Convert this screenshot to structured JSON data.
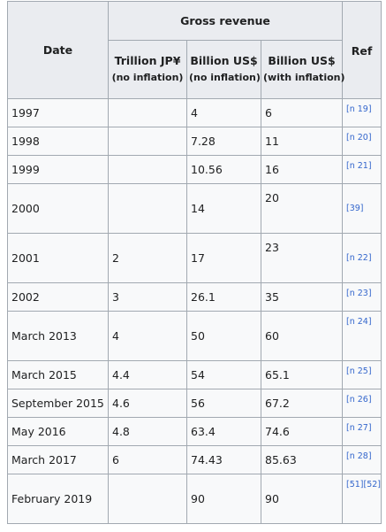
{
  "table": {
    "header": {
      "date": "Date",
      "gross_revenue": "Gross revenue",
      "ref": "Ref",
      "columns": [
        {
          "line1": "Trillion JP¥",
          "line2": "(no inflation)"
        },
        {
          "line1": "Billion US$",
          "line2": "(no inflation)"
        },
        {
          "line1": "Billion US$",
          "line2": "(with inflation)"
        }
      ]
    },
    "rows": [
      {
        "date": "1997",
        "jpy": "",
        "usd": "4",
        "usd_infl": "6",
        "ref": "[n 19]"
      },
      {
        "date": "1998",
        "jpy": "",
        "usd": "7.28",
        "usd_infl": "11",
        "ref": "[n 20]"
      },
      {
        "date": "1999",
        "jpy": "",
        "usd": "10.56",
        "usd_infl": "16",
        "ref": "[n 21]"
      },
      {
        "date": "2000",
        "jpy": "",
        "usd": "14",
        "usd_infl": "20",
        "ref": "[39]"
      },
      {
        "date": "2001",
        "jpy": "2",
        "usd": "17",
        "usd_infl": "23",
        "ref": "[n 22]"
      },
      {
        "date": "2002",
        "jpy": "3",
        "usd": "26.1",
        "usd_infl": "35",
        "ref": "[n 23]"
      },
      {
        "date": "March 2013",
        "jpy": "4",
        "usd": "50",
        "usd_infl": "60",
        "ref": "[n 24]"
      },
      {
        "date": "March 2015",
        "jpy": "4.4",
        "usd": "54",
        "usd_infl": "65.1",
        "ref": "[n 25]"
      },
      {
        "date": "September 2015",
        "jpy": "4.6",
        "usd": "56",
        "usd_infl": "67.2",
        "ref": "[n 26]"
      },
      {
        "date": "May 2016",
        "jpy": "4.8",
        "usd": "63.4",
        "usd_infl": "74.6",
        "ref": "[n 27]"
      },
      {
        "date": "March 2017",
        "jpy": "6",
        "usd": "74.43",
        "usd_infl": "85.63",
        "ref": "[n 28]"
      },
      {
        "date": "February 2019",
        "jpy": "",
        "usd": "90",
        "usd_infl": "90",
        "ref": "[51][52]"
      }
    ]
  }
}
